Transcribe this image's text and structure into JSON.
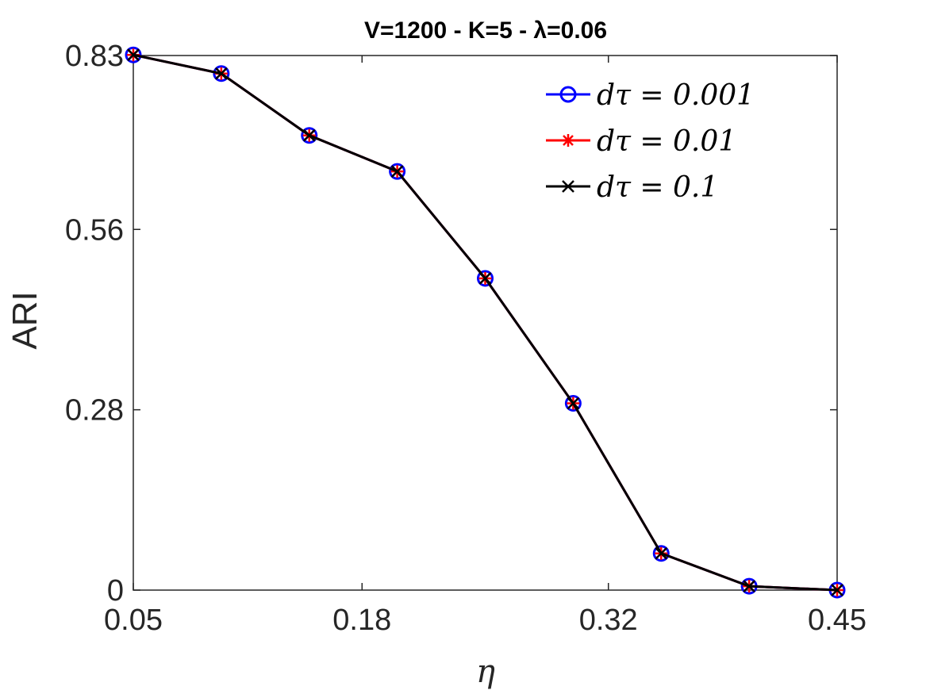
{
  "chart_data": {
    "type": "line",
    "title": "V=1200 - K=5 - λ=0.06",
    "xlabel": "η",
    "ylabel": "ARI",
    "xlim": [
      0.05,
      0.45
    ],
    "ylim": [
      0,
      0.83
    ],
    "xticks": [
      0.05,
      0.18,
      0.32,
      0.45
    ],
    "xtick_labels": [
      "0.05",
      "0.18",
      "0.32",
      "0.45"
    ],
    "yticks": [
      0,
      0.28,
      0.56,
      0.83
    ],
    "ytick_labels": [
      "0",
      "0.28",
      "0.56",
      "0.83"
    ],
    "grid": false,
    "legend_position": "top-right",
    "x": [
      0.05,
      0.1,
      0.15,
      0.2,
      0.25,
      0.3,
      0.35,
      0.4,
      0.45
    ],
    "series": [
      {
        "name": "dτ = 0.001",
        "color": "#0000ff",
        "marker": "circle",
        "values": [
          0.831,
          0.802,
          0.706,
          0.65,
          0.484,
          0.29,
          0.057,
          0.006,
          0.0
        ]
      },
      {
        "name": "dτ = 0.01",
        "color": "#ff0000",
        "marker": "asterisk",
        "values": [
          0.831,
          0.802,
          0.706,
          0.65,
          0.484,
          0.29,
          0.057,
          0.006,
          0.0
        ]
      },
      {
        "name": "dτ = 0.1",
        "color": "#000000",
        "marker": "x",
        "values": [
          0.831,
          0.802,
          0.706,
          0.65,
          0.484,
          0.29,
          0.057,
          0.006,
          0.0
        ]
      }
    ]
  }
}
